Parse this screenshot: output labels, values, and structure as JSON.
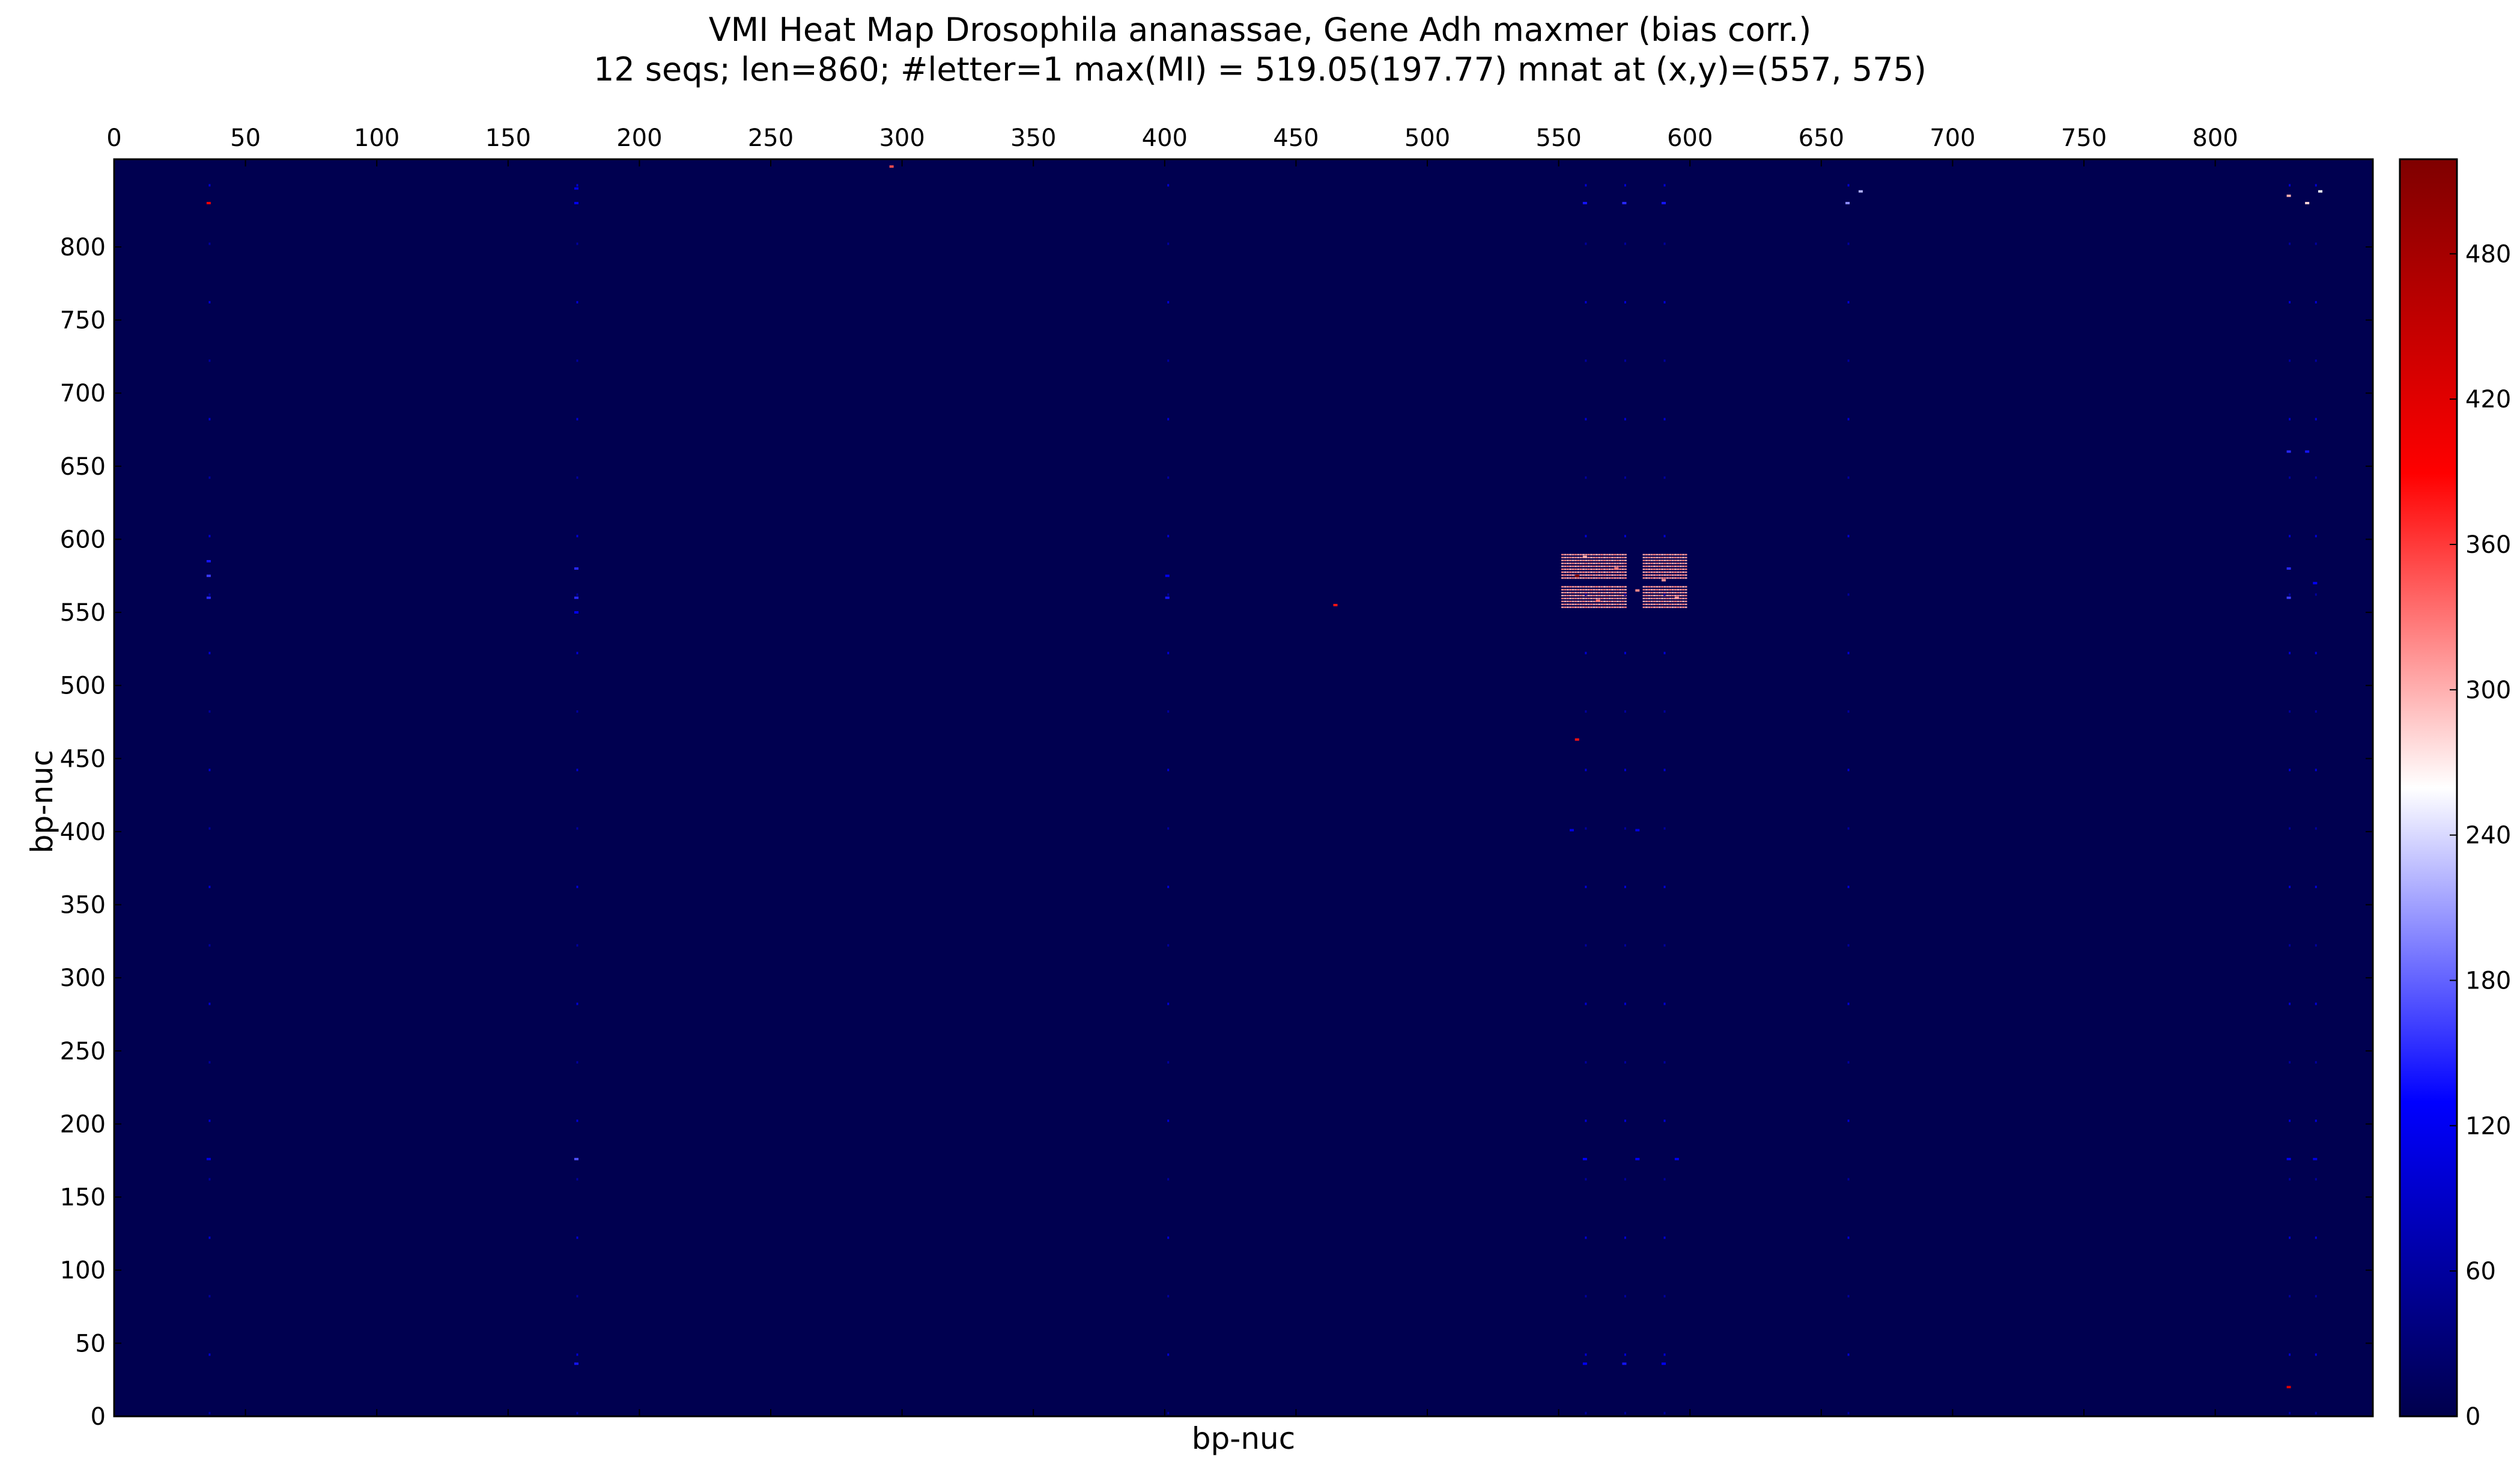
{
  "chart_data": {
    "type": "heatmap",
    "title": "VMI Heat Map Drosophila ananassae, Gene Adh maxmer (bias corr.)",
    "subtitle": "12 seqs; len=860; #letter=1 max(MI) = 519.05(197.77) mnat at (x,y)=(557, 575)",
    "xlabel": "bp-nuc",
    "ylabel": "bp-nuc",
    "xlim": [
      0,
      860
    ],
    "ylim": [
      0,
      860
    ],
    "x_ticks": [
      "0",
      "50",
      "100",
      "150",
      "200",
      "250",
      "300",
      "350",
      "400",
      "450",
      "500",
      "550",
      "600",
      "650",
      "700",
      "750",
      "800"
    ],
    "y_ticks": [
      "0",
      "50",
      "100",
      "150",
      "200",
      "250",
      "300",
      "350",
      "400",
      "450",
      "500",
      "550",
      "600",
      "650",
      "700",
      "750",
      "800"
    ],
    "colorbar_ticks": [
      "0",
      "60",
      "120",
      "180",
      "240",
      "300",
      "360",
      "420",
      "480"
    ],
    "colorbar_range": [
      0,
      519.05
    ],
    "colormap": [
      "#00004c",
      "#0000ff",
      "#ffffff",
      "#ff0000",
      "#7f0000"
    ],
    "background_color": "#000050",
    "hot_cells": [
      {
        "x": 557,
        "y": 575,
        "value": 519.05
      },
      {
        "x": 565,
        "y": 558,
        "value": 330
      },
      {
        "x": 572,
        "y": 580,
        "value": 325
      },
      {
        "x": 580,
        "y": 565,
        "value": 320
      },
      {
        "x": 590,
        "y": 572,
        "value": 315
      },
      {
        "x": 595,
        "y": 560,
        "value": 310
      },
      {
        "x": 560,
        "y": 588,
        "value": 300
      }
    ],
    "hot_region": {
      "x": [
        551,
        598
      ],
      "y": [
        553,
        590
      ],
      "value": 300
    },
    "medium_cells": [
      {
        "x": 36,
        "y": 560,
        "value": 150
      },
      {
        "x": 36,
        "y": 575,
        "value": 160
      },
      {
        "x": 36,
        "y": 585,
        "value": 140
      },
      {
        "x": 176,
        "y": 560,
        "value": 150
      },
      {
        "x": 176,
        "y": 580,
        "value": 150
      },
      {
        "x": 176,
        "y": 550,
        "value": 130
      },
      {
        "x": 401,
        "y": 560,
        "value": 140
      },
      {
        "x": 401,
        "y": 575,
        "value": 120
      },
      {
        "x": 828,
        "y": 560,
        "value": 160
      },
      {
        "x": 828,
        "y": 580,
        "value": 150
      },
      {
        "x": 838,
        "y": 570,
        "value": 130
      },
      {
        "x": 560,
        "y": 830,
        "value": 140
      },
      {
        "x": 575,
        "y": 830,
        "value": 150
      },
      {
        "x": 590,
        "y": 830,
        "value": 140
      },
      {
        "x": 560,
        "y": 36,
        "value": 130
      },
      {
        "x": 575,
        "y": 36,
        "value": 140
      },
      {
        "x": 590,
        "y": 36,
        "value": 130
      },
      {
        "x": 560,
        "y": 176,
        "value": 130
      },
      {
        "x": 580,
        "y": 176,
        "value": 130
      },
      {
        "x": 595,
        "y": 176,
        "value": 120
      },
      {
        "x": 555,
        "y": 401,
        "value": 110
      },
      {
        "x": 580,
        "y": 401,
        "value": 110
      },
      {
        "x": 176,
        "y": 830,
        "value": 120
      },
      {
        "x": 176,
        "y": 840,
        "value": 110
      },
      {
        "x": 660,
        "y": 830,
        "value": 200
      },
      {
        "x": 665,
        "y": 838,
        "value": 220
      },
      {
        "x": 828,
        "y": 835,
        "value": 300
      },
      {
        "x": 835,
        "y": 830,
        "value": 280
      },
      {
        "x": 840,
        "y": 838,
        "value": 260
      },
      {
        "x": 828,
        "y": 660,
        "value": 150
      },
      {
        "x": 835,
        "y": 660,
        "value": 140
      },
      {
        "x": 828,
        "y": 176,
        "value": 120
      },
      {
        "x": 838,
        "y": 176,
        "value": 110
      },
      {
        "x": 36,
        "y": 176,
        "value": 110
      },
      {
        "x": 176,
        "y": 176,
        "value": 170
      },
      {
        "x": 176,
        "y": 36,
        "value": 140
      },
      {
        "x": 828,
        "y": 20,
        "value": 420
      },
      {
        "x": 36,
        "y": 830,
        "value": 400
      },
      {
        "x": 465,
        "y": 555,
        "value": 380
      },
      {
        "x": 557,
        "y": 463,
        "value": 380
      },
      {
        "x": 296,
        "y": 855,
        "value": 350
      }
    ]
  }
}
